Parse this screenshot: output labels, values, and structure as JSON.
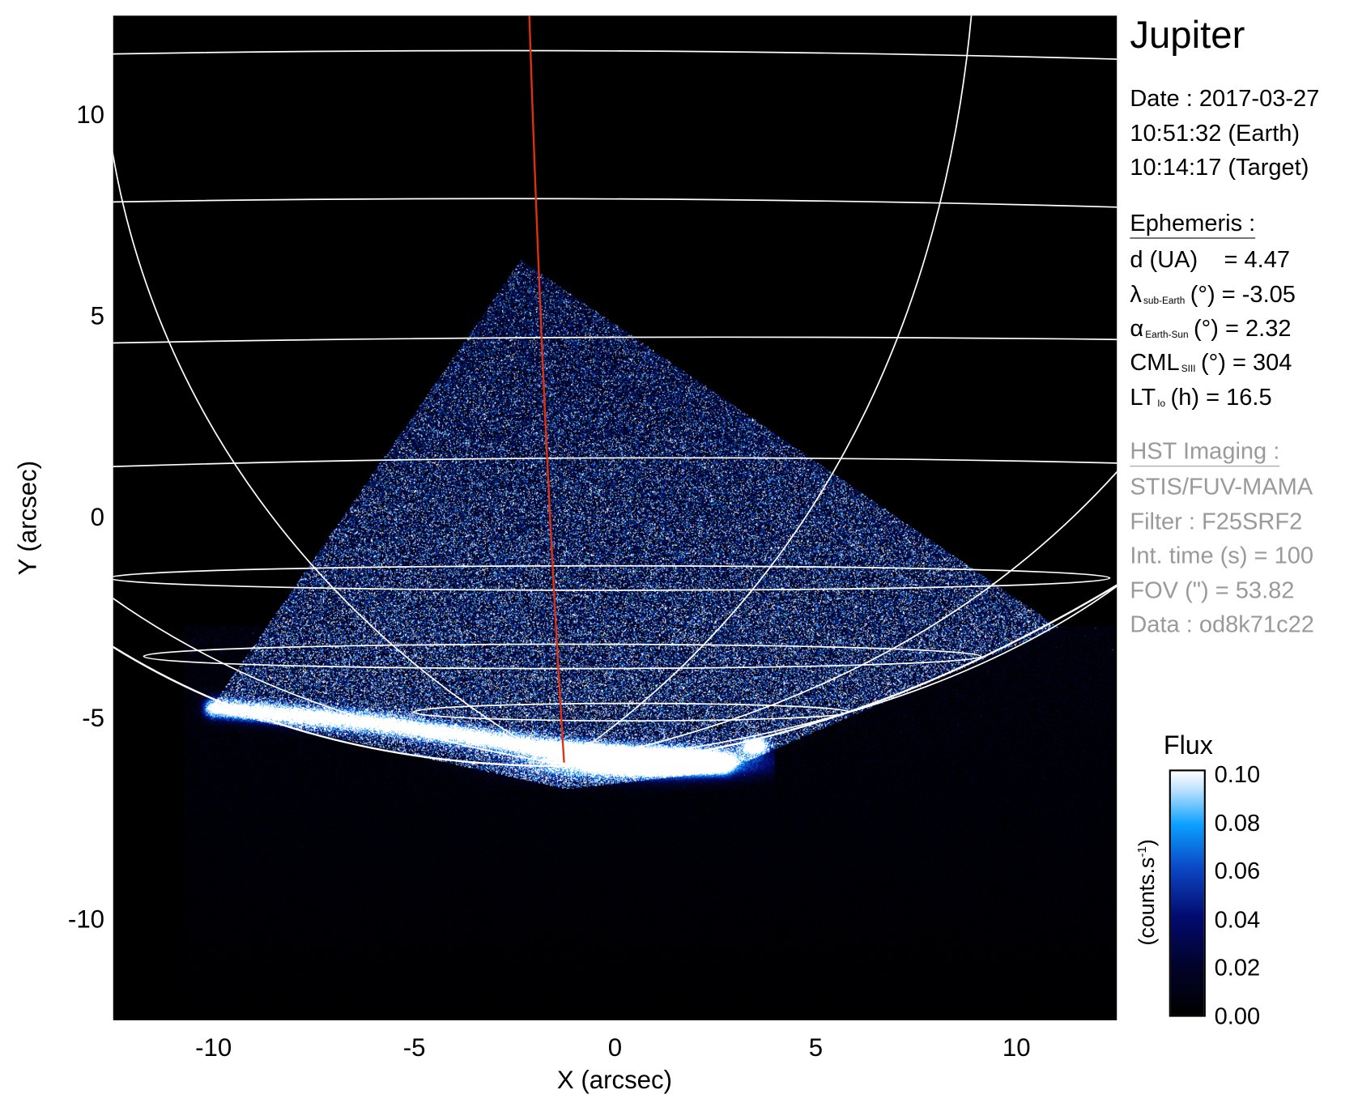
{
  "chart_data": {
    "type": "heatmap",
    "xlabel": "X (arcsec)",
    "ylabel": "Y (arcsec)",
    "xlim": [
      -12.5,
      12.5
    ],
    "ylim": [
      -12.5,
      12.5
    ],
    "x_ticks": [
      "-10",
      "-5",
      "0",
      "5",
      "10"
    ],
    "y_ticks": [
      "10",
      "5",
      "0",
      "-5",
      "-10"
    ],
    "grid": "planetographic latitude/longitude overlay",
    "colormap": [
      "#000000",
      "#020a6e",
      "#0b46c4",
      "#0aa0ff",
      "#ffffff"
    ],
    "colorbar": {
      "title": "Flux",
      "unit_label": "(counts.s",
      "unit_sup": "-1",
      "unit_close": ")",
      "range": [
        0.0,
        0.1
      ],
      "ticks": [
        "0.10",
        "0.08",
        "0.06",
        "0.04",
        "0.02",
        "0.00"
      ]
    },
    "overlay_line_color": "#e03010",
    "grid_color": "#ffffff"
  },
  "panel": {
    "title": "Jupiter",
    "date": "Date : 2017-03-27",
    "time_earth": "10:51:32 (Earth)",
    "time_target": "10:14:17 (Target)",
    "ephemeris_header": "Ephemeris :",
    "ephem": [
      {
        "symbol": "d (UA)",
        "sub": "",
        "rest": "    = 4.47"
      },
      {
        "symbol": "λ",
        "sub": "sub-Earth",
        "rest": "(°) = -3.05"
      },
      {
        "symbol": "α",
        "sub": "Earth-Sun",
        "rest": "(°) = 2.32"
      },
      {
        "symbol": "CML",
        "sub": "SIII",
        "rest": "(°) = 304"
      },
      {
        "symbol": "LT",
        "sub": "Io",
        "rest": "(h) = 16.5"
      }
    ],
    "hst_header": "HST Imaging :",
    "hst": [
      "STIS/FUV-MAMA",
      "Filter : F25SRF2",
      "Int. time (s) = 100",
      "FOV (\") = 53.82",
      "Data : od8k71c22"
    ]
  }
}
